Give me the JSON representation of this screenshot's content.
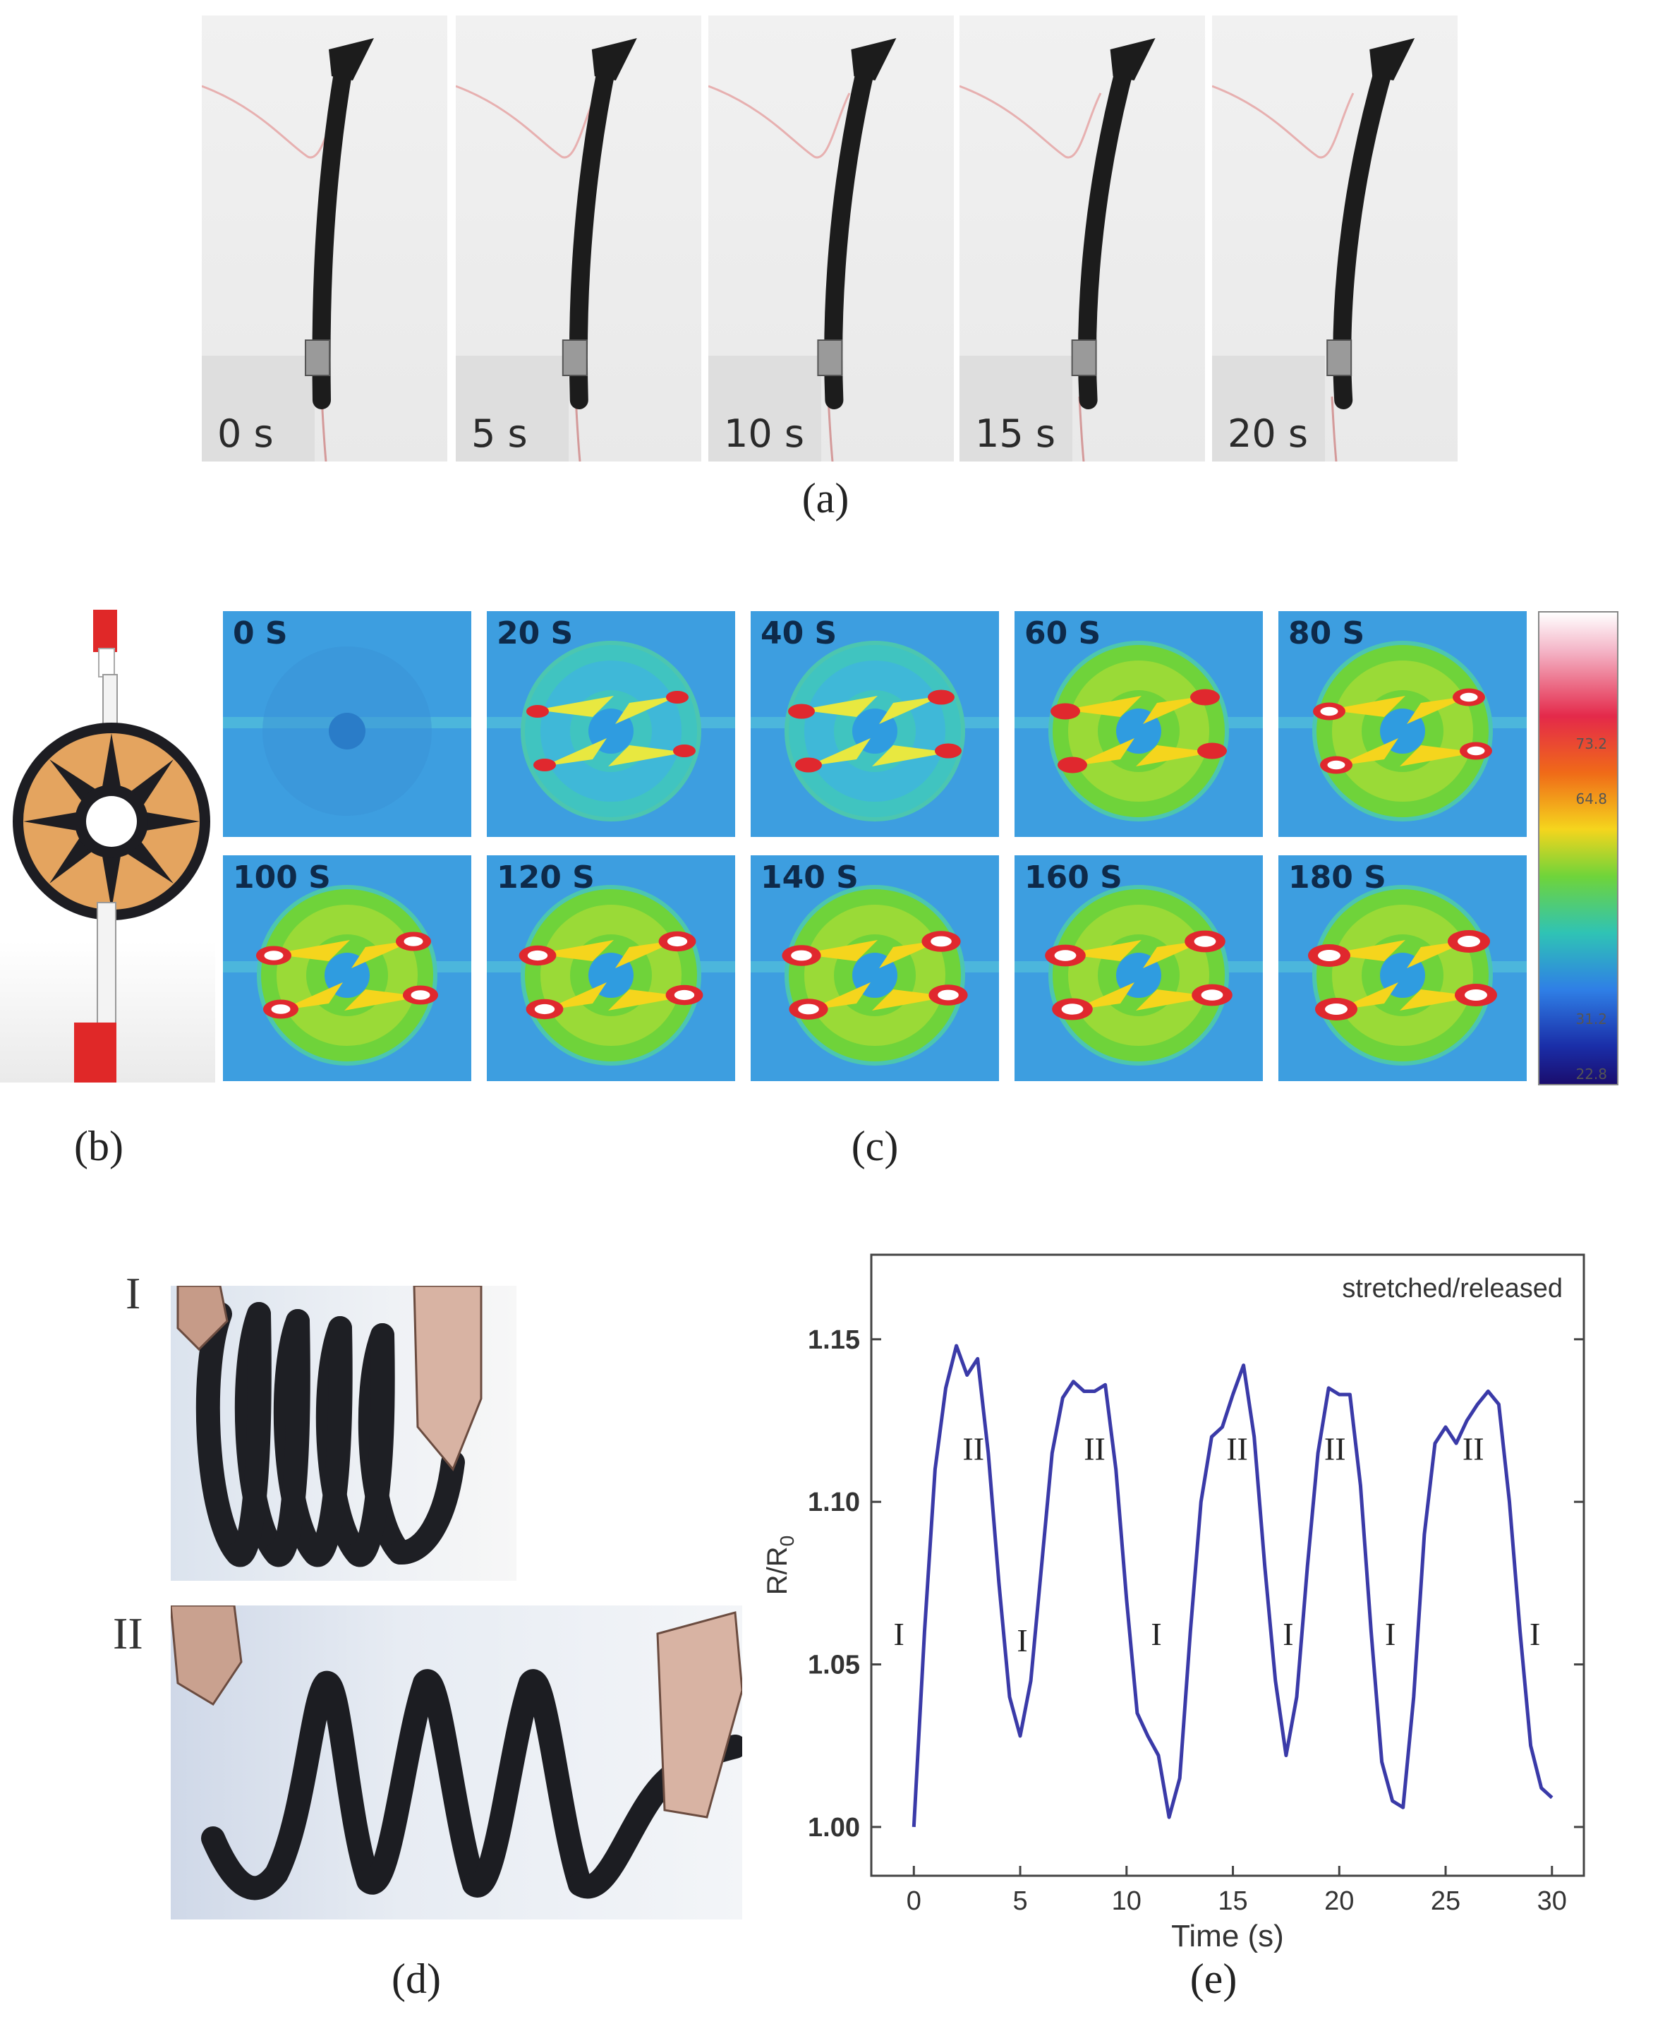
{
  "panel_a": {
    "label": "(a)",
    "frames": [
      {
        "time": "0 s",
        "bend": 60
      },
      {
        "time": "5 s",
        "bend": 44
      },
      {
        "time": "10 s",
        "bend": 32
      },
      {
        "time": "15 s",
        "bend": 18
      },
      {
        "time": "20 s",
        "bend": 6
      }
    ]
  },
  "panel_b": {
    "label": "(b)"
  },
  "panel_c": {
    "label": "(c)",
    "frames": [
      {
        "time": "0 S",
        "heat": 0
      },
      {
        "time": "20 S",
        "heat": 0.3
      },
      {
        "time": "40 S",
        "heat": 0.45
      },
      {
        "time": "60 S",
        "heat": 0.55
      },
      {
        "time": "80 S",
        "heat": 0.65
      },
      {
        "time": "100 S",
        "heat": 0.75
      },
      {
        "time": "120 S",
        "heat": 0.82
      },
      {
        "time": "140 S",
        "heat": 0.88
      },
      {
        "time": "160 S",
        "heat": 0.94
      },
      {
        "time": "180 S",
        "heat": 1.0
      }
    ],
    "colorbar_ticks": [
      "",
      "",
      "73.2",
      "64.8",
      "",
      "",
      "",
      "31.2",
      "22.8"
    ]
  },
  "panel_d": {
    "label": "(d)",
    "state_1": "I",
    "state_2": "II"
  },
  "panel_e": {
    "label": "(e)"
  },
  "colors": {
    "curve": "#3a3aa8",
    "thermal_bg": "#3d9ee0"
  },
  "chart_data": {
    "type": "line",
    "xlabel": "Time (s)",
    "ylabel": "R/R",
    "ylabel_sub": "0",
    "legend": "stretched/released",
    "xlim": [
      -2,
      31.5
    ],
    "ylim": [
      0.985,
      1.176
    ],
    "xticks": [
      0,
      5,
      10,
      15,
      20,
      25,
      30
    ],
    "yticks": [
      1.0,
      1.05,
      1.1,
      1.15
    ],
    "ytick_labels": [
      "1.00",
      "1.05",
      "1.10",
      "1.15"
    ],
    "series": [
      {
        "x": [
          0,
          0.5,
          1,
          1.5,
          2,
          2.5,
          3,
          3.5,
          4,
          4.5,
          5,
          5.5,
          6,
          6.5,
          7,
          7.5,
          8,
          8.5,
          9,
          9.5,
          10,
          10.5,
          11,
          11.5,
          12,
          12.5,
          13,
          13.5,
          14,
          14.5,
          15,
          15.5,
          16,
          16.5,
          17,
          17.5,
          18,
          18.5,
          19,
          19.5,
          20,
          20.5,
          21,
          21.5,
          22,
          22.5,
          23,
          23.5,
          24,
          24.5,
          25,
          25.5,
          26,
          26.5,
          27,
          27.5,
          28,
          28.5,
          29,
          29.5,
          30
        ],
        "y": [
          1.0,
          1.06,
          1.11,
          1.135,
          1.148,
          1.139,
          1.144,
          1.115,
          1.075,
          1.04,
          1.028,
          1.045,
          1.08,
          1.115,
          1.132,
          1.137,
          1.134,
          1.134,
          1.136,
          1.11,
          1.07,
          1.035,
          1.028,
          1.022,
          1.003,
          1.015,
          1.06,
          1.1,
          1.12,
          1.123,
          1.133,
          1.142,
          1.12,
          1.08,
          1.045,
          1.022,
          1.04,
          1.08,
          1.115,
          1.135,
          1.133,
          1.133,
          1.105,
          1.06,
          1.02,
          1.008,
          1.006,
          1.04,
          1.09,
          1.118,
          1.123,
          1.118,
          1.125,
          1.13,
          1.134,
          1.13,
          1.1,
          1.06,
          1.025,
          1.012,
          1.009
        ]
      }
    ],
    "annotations": [
      {
        "text": "I",
        "x": -0.7,
        "y": 1.056
      },
      {
        "text": "II",
        "x": 2.8,
        "y": 1.113
      },
      {
        "text": "I",
        "x": 5.1,
        "y": 1.054
      },
      {
        "text": "II",
        "x": 8.5,
        "y": 1.113
      },
      {
        "text": "I",
        "x": 11.4,
        "y": 1.056
      },
      {
        "text": "II",
        "x": 15.2,
        "y": 1.113
      },
      {
        "text": "I",
        "x": 17.6,
        "y": 1.056
      },
      {
        "text": "II",
        "x": 19.8,
        "y": 1.113
      },
      {
        "text": "I",
        "x": 22.4,
        "y": 1.056
      },
      {
        "text": "II",
        "x": 26.3,
        "y": 1.113
      },
      {
        "text": "I",
        "x": 29.2,
        "y": 1.056
      }
    ]
  }
}
